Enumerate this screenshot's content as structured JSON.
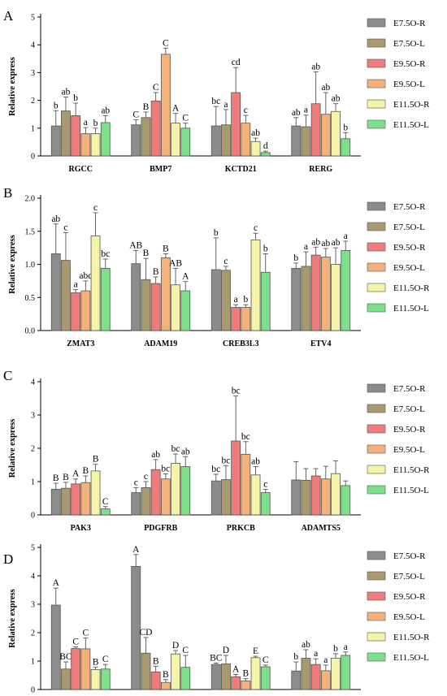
{
  "chart_data": [
    {
      "type": "bar",
      "panel": "A",
      "ylabel": "Relative express",
      "ylim": [
        0,
        5
      ],
      "yticks": [
        0,
        1,
        2,
        3,
        4,
        5
      ],
      "categories": [
        "RGCC",
        "BMP7",
        "KCTD21",
        "RERG"
      ],
      "series": [
        {
          "name": "E7.5O-R",
          "values": [
            1.08,
            1.12,
            1.08,
            1.08
          ],
          "errors": [
            0.55,
            0.18,
            0.7,
            0.3
          ],
          "labels": [
            "b",
            "C",
            "bc",
            "ab"
          ]
        },
        {
          "name": "E7.5O-L",
          "values": [
            1.62,
            1.38,
            1.12,
            1.05
          ],
          "errors": [
            0.5,
            0.2,
            0.55,
            0.42
          ],
          "labels": [
            "ab",
            "B",
            "a",
            "a"
          ]
        },
        {
          "name": "E9.5O-R",
          "values": [
            1.45,
            1.98,
            2.28,
            1.88
          ],
          "errors": [
            0.45,
            0.3,
            0.9,
            1.15
          ],
          "labels": [
            "b",
            "C",
            "cd",
            "ab"
          ]
        },
        {
          "name": "E9.5O-L",
          "values": [
            0.8,
            3.66,
            1.18,
            1.5
          ],
          "errors": [
            0.22,
            0.22,
            0.28,
            0.78
          ],
          "labels": [
            "a",
            "C",
            "c",
            "ab"
          ]
        },
        {
          "name": "E11.5O-R",
          "values": [
            0.8,
            1.18,
            0.52,
            1.6
          ],
          "errors": [
            0.2,
            0.35,
            0.12,
            0.28
          ],
          "labels": [
            "b",
            "A",
            "ab",
            "ab"
          ]
        },
        {
          "name": "E11.5O-L",
          "values": [
            1.2,
            1.0,
            0.12,
            0.62
          ],
          "errors": [
            0.25,
            0.18,
            0.05,
            0.22
          ],
          "labels": [
            "ab",
            "C",
            "d",
            "b"
          ]
        }
      ]
    },
    {
      "type": "bar",
      "panel": "B",
      "ylabel": "Relative express",
      "ylim": [
        0,
        2.0
      ],
      "yticks": [
        "0.0",
        "0.5",
        "1.0",
        "1.5",
        "2.0"
      ],
      "categories": [
        "ZMAT3",
        "ADAM19",
        "CREB3L3",
        "ETV4"
      ],
      "series": [
        {
          "name": "E7.5O-R",
          "values": [
            1.16,
            1.01,
            0.92,
            0.94
          ],
          "errors": [
            0.45,
            0.2,
            0.48,
            0.08
          ],
          "labels": [
            "ab",
            "AB",
            "b",
            "b"
          ]
        },
        {
          "name": "E7.5O-L",
          "values": [
            1.06,
            0.77,
            0.91,
            0.97
          ],
          "errors": [
            0.42,
            0.32,
            0.06,
            0.22
          ],
          "labels": [
            "c",
            "B",
            "c",
            "a"
          ]
        },
        {
          "name": "E9.5O-R",
          "values": [
            0.57,
            0.71,
            0.35,
            1.14
          ],
          "errors": [
            0.05,
            0.1,
            0.04,
            0.12
          ],
          "labels": [
            "a",
            "B",
            "a",
            "ab"
          ]
        },
        {
          "name": "E9.5O-L",
          "values": [
            0.6,
            1.1,
            0.35,
            1.11
          ],
          "errors": [
            0.15,
            0.06,
            0.04,
            0.13
          ],
          "labels": [
            "abc",
            "B",
            "b",
            "ab"
          ]
        },
        {
          "name": "E11.5O-R",
          "values": [
            1.43,
            0.69,
            1.37,
            1.0
          ],
          "errors": [
            0.35,
            0.25,
            0.1,
            0.25
          ],
          "labels": [
            "c",
            "AB",
            "c",
            "ab"
          ]
        },
        {
          "name": "E11.5O-L",
          "values": [
            0.94,
            0.6,
            0.88,
            1.21
          ],
          "errors": [
            0.14,
            0.14,
            0.28,
            0.14
          ],
          "labels": [
            "bc",
            "A",
            "b",
            "a"
          ]
        }
      ]
    },
    {
      "type": "bar",
      "panel": "C",
      "ylabel": "Relative express",
      "ylim": [
        0,
        4
      ],
      "yticks": [
        0,
        1,
        2,
        3,
        4
      ],
      "categories": [
        "PAK3",
        "PDGFRB",
        "PRKCB",
        "ADAMTS5"
      ],
      "series": [
        {
          "name": "E7.5O-R",
          "values": [
            0.77,
            0.67,
            1.02,
            1.05
          ],
          "errors": [
            0.18,
            0.15,
            0.2,
            0.55
          ],
          "labels": [
            "B",
            "c",
            "bc",
            ""
          ]
        },
        {
          "name": "E7.5O-L",
          "values": [
            0.8,
            0.82,
            1.06,
            1.04
          ],
          "errors": [
            0.18,
            0.18,
            0.42,
            0.35
          ],
          "labels": [
            "B",
            "c",
            "bc",
            ""
          ]
        },
        {
          "name": "E9.5O-R",
          "values": [
            0.93,
            1.36,
            2.22,
            1.17
          ],
          "errors": [
            0.15,
            0.3,
            1.35,
            0.22
          ],
          "labels": [
            "A",
            "ab",
            "bc",
            ""
          ]
        },
        {
          "name": "E9.5O-L",
          "values": [
            0.97,
            1.08,
            1.82,
            1.08
          ],
          "errors": [
            0.2,
            0.15,
            0.38,
            0.38
          ],
          "labels": [
            "B",
            "bc",
            "bc",
            ""
          ]
        },
        {
          "name": "E11.5O-R",
          "values": [
            1.32,
            1.55,
            1.2,
            1.24
          ],
          "errors": [
            0.2,
            0.28,
            0.25,
            0.38
          ],
          "labels": [
            "B",
            "bc",
            "ab",
            ""
          ]
        },
        {
          "name": "E11.5O-L",
          "values": [
            0.18,
            1.45,
            0.67,
            0.88
          ],
          "errors": [
            0.07,
            0.3,
            0.1,
            0.14
          ],
          "labels": [
            "C",
            "ab",
            "c",
            ""
          ]
        }
      ]
    },
    {
      "type": "bar",
      "panel": "D",
      "ylabel": "Relative express",
      "ylim": [
        0,
        5
      ],
      "yticks": [
        0,
        1,
        2,
        3,
        4,
        5
      ],
      "categories": [
        "PAX3",
        "SLC6A11",
        "GMP6A",
        "PITX2"
      ],
      "series": [
        {
          "name": "E7.5O-R",
          "values": [
            2.97,
            4.33,
            0.88,
            0.65
          ],
          "errors": [
            0.6,
            0.42,
            0.05,
            0.32
          ],
          "labels": [
            "A",
            "A",
            "BC",
            "b"
          ]
        },
        {
          "name": "E7.5O-L",
          "values": [
            0.72,
            1.28,
            0.9,
            1.1
          ],
          "errors": [
            0.25,
            0.55,
            0.3,
            0.3
          ],
          "labels": [
            "BC",
            "CD",
            "D",
            "ab"
          ]
        },
        {
          "name": "E9.5O-R",
          "values": [
            1.44,
            0.62,
            0.45,
            0.88
          ],
          "errors": [
            0.06,
            0.2,
            0.08,
            0.2
          ],
          "labels": [
            "C",
            "B",
            "A",
            "a"
          ]
        },
        {
          "name": "E9.5O-L",
          "values": [
            1.43,
            0.25,
            0.3,
            0.66
          ],
          "errors": [
            0.38,
            0.1,
            0.08,
            0.2
          ],
          "labels": [
            "C",
            "B",
            "B",
            "a"
          ]
        },
        {
          "name": "E11.5O-R",
          "values": [
            0.7,
            1.25,
            1.12,
            1.1
          ],
          "errors": [
            0.08,
            0.12,
            0.05,
            0.16
          ],
          "labels": [
            "B",
            "D",
            "E",
            "b"
          ]
        },
        {
          "name": "E11.5O-L",
          "values": [
            0.72,
            0.78,
            0.8,
            1.2
          ],
          "errors": [
            0.16,
            0.42,
            0.06,
            0.12
          ],
          "labels": [
            "C",
            "C",
            "C",
            "a"
          ]
        }
      ]
    }
  ],
  "colors": {
    "E7.5O-R": "#8c8c8c",
    "E7.5O-L": "#a89a6e",
    "E9.5O-R": "#ef7b7b",
    "E9.5O-L": "#f2b27a",
    "E11.5O-R": "#f5f4ab",
    "E11.5O-L": "#7ee08a",
    "edge": "#555555"
  }
}
